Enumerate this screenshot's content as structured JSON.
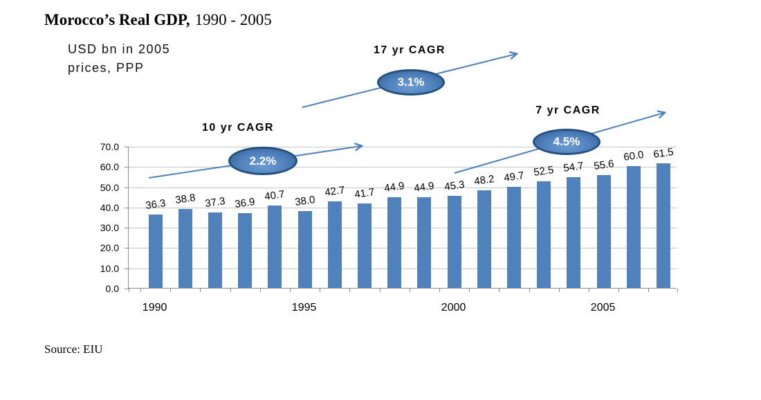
{
  "header": {
    "title_bold": "Morocco’s Real GDP,",
    "title_rest": "1990 - 2005",
    "subtitle_line1": "USD bn in 2005",
    "subtitle_line2": "prices, PPP"
  },
  "footer": {
    "source": "Source: EIU"
  },
  "colors": {
    "bar": "#4F81BD",
    "arrow": "#4F81BD",
    "ellipse_border": "#24507E",
    "gridline": "#C6C6C6",
    "axis": "#8C8C8C"
  },
  "chart_data": {
    "type": "bar",
    "title": "Morocco’s Real GDP, 1990 - 2005",
    "unit_note": "USD bn in 2005 prices, PPP",
    "years": [
      1990,
      1991,
      1992,
      1993,
      1994,
      1995,
      1996,
      1997,
      1998,
      1999,
      2000,
      2001,
      2002,
      2003,
      2004,
      2005,
      2006,
      2007
    ],
    "values": [
      36.3,
      38.8,
      37.3,
      36.9,
      40.7,
      38.0,
      42.7,
      41.7,
      44.9,
      44.9,
      45.3,
      48.2,
      49.7,
      52.5,
      54.7,
      55.6,
      60.0,
      61.5
    ],
    "labels": [
      "36.3",
      "38.8",
      "37.3",
      "36.9",
      "40.7",
      "38.0",
      "42.7",
      "41.7",
      "44.9",
      "44.9",
      "45.3",
      "48.2",
      "49.7",
      "52.5",
      "54.7",
      "55.6",
      "60.0",
      "61.5"
    ],
    "xticks": [
      "1990",
      "1995",
      "2000",
      "2005"
    ],
    "yticks": [
      "70.0",
      "60.0",
      "50.0",
      "40.0",
      "30.0",
      "20.0",
      "10.0",
      "0.0"
    ],
    "ylim": [
      0,
      70
    ],
    "grid": true,
    "legend": "none",
    "annotations": [
      {
        "label": "10 yr CAGR",
        "value": "2.2%"
      },
      {
        "label": "17 yr CAGR",
        "value": "3.1%"
      },
      {
        "label": "7 yr CAGR",
        "value": "4.5%"
      }
    ]
  }
}
